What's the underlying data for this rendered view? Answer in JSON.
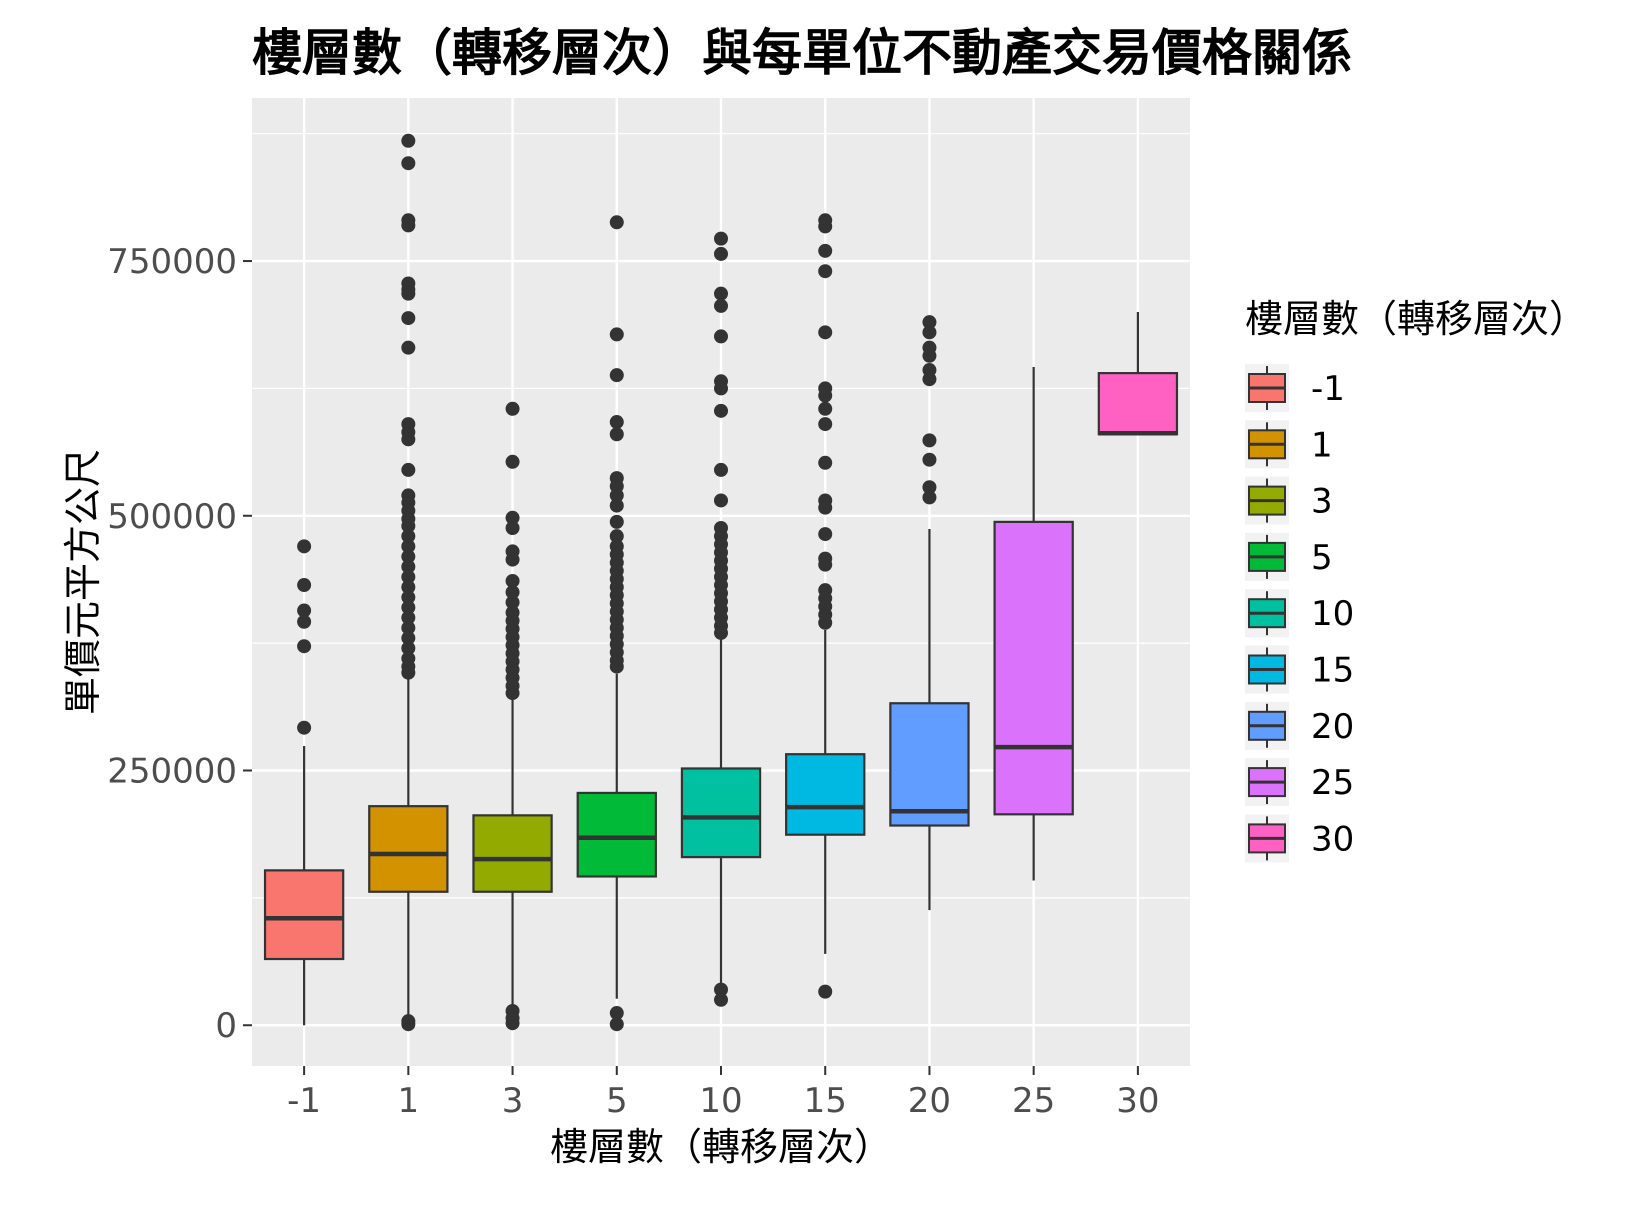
{
  "chart_data": {
    "type": "boxplot",
    "title": "樓層數（轉移層次）與每單位不動產交易價格關係",
    "xlabel": "樓層數（轉移層次）",
    "ylabel": "單價元平方公尺",
    "ylim": [
      -40000,
      910000
    ],
    "yticks": [
      0,
      250000,
      500000,
      750000
    ],
    "ytick_labels": [
      "0",
      "250000",
      "500000",
      "750000"
    ],
    "grid": true,
    "legend": {
      "title": "樓層數（轉移層次）",
      "position": "right"
    },
    "categories": [
      "-1",
      "1",
      "3",
      "5",
      "10",
      "15",
      "20",
      "25",
      "30"
    ],
    "colors": [
      "#F8766D",
      "#D39200",
      "#93AA00",
      "#00BA38",
      "#00C19F",
      "#00B9E3",
      "#619CFF",
      "#DB72FB",
      "#FF61C3"
    ],
    "boxes": [
      {
        "label": "-1",
        "whisker_low": 0,
        "q1": 65000,
        "median": 105000,
        "q3": 152000,
        "whisker_high": 274000,
        "outliers": [
          470000,
          432000,
          407000,
          396000,
          372000,
          292000
        ]
      },
      {
        "label": "1",
        "whisker_low": 0,
        "q1": 131000,
        "median": 168000,
        "q3": 215000,
        "whisker_high": 340000,
        "outliers": [
          868000,
          846000,
          790000,
          785000,
          728000,
          722000,
          718000,
          694000,
          665000,
          590000,
          582000,
          575000,
          545000,
          520000,
          513000,
          505000,
          497000,
          490000,
          480000,
          470000,
          460000,
          450000,
          440000,
          430000,
          420000,
          410000,
          400000,
          390000,
          380000,
          370000,
          360000,
          352000,
          346000,
          4000,
          1000
        ]
      },
      {
        "label": "3",
        "whisker_low": 0,
        "q1": 131000,
        "median": 163000,
        "q3": 206000,
        "whisker_high": 320000,
        "outliers": [
          605000,
          553000,
          498000,
          488000,
          465000,
          457000,
          436000,
          425000,
          415000,
          405000,
          397000,
          389000,
          381000,
          373000,
          365000,
          357000,
          349000,
          341000,
          333000,
          326000,
          14000,
          7000,
          2000
        ]
      },
      {
        "label": "5",
        "whisker_low": 26000,
        "q1": 146000,
        "median": 184000,
        "q3": 228000,
        "whisker_high": 345000,
        "outliers": [
          788000,
          678000,
          638000,
          592000,
          580000,
          537000,
          529000,
          520000,
          510000,
          494000,
          480000,
          470000,
          462000,
          454000,
          446000,
          438000,
          430000,
          422000,
          414000,
          406000,
          398000,
          390000,
          382000,
          374000,
          366000,
          358000,
          352000,
          12000,
          1000
        ]
      },
      {
        "label": "10",
        "whisker_low": 30000,
        "q1": 165000,
        "median": 204000,
        "q3": 252000,
        "whisker_high": 380000,
        "outliers": [
          772000,
          757000,
          718000,
          706000,
          676000,
          632000,
          625000,
          603000,
          545000,
          515000,
          488000,
          480000,
          472000,
          464000,
          456000,
          448000,
          440000,
          432000,
          424000,
          416000,
          408000,
          400000,
          392000,
          385000,
          35000,
          25000
        ]
      },
      {
        "label": "15",
        "whisker_low": 70000,
        "q1": 187000,
        "median": 214000,
        "q3": 266000,
        "whisker_high": 388000,
        "outliers": [
          790000,
          784000,
          760000,
          740000,
          680000,
          625000,
          618000,
          605000,
          590000,
          552000,
          515000,
          508000,
          482000,
          458000,
          452000,
          427000,
          419000,
          411000,
          403000,
          395000,
          33000
        ]
      },
      {
        "label": "20",
        "whisker_low": 113000,
        "q1": 196000,
        "median": 210000,
        "q3": 316000,
        "whisker_high": 487000,
        "outliers": [
          690000,
          680000,
          665000,
          657000,
          643000,
          634000,
          574000,
          555000,
          528000,
          518000
        ]
      },
      {
        "label": "25",
        "whisker_low": 142000,
        "q1": 207000,
        "median": 273000,
        "q3": 494000,
        "whisker_high": 646000,
        "outliers": []
      },
      {
        "label": "30",
        "whisker_low": 580000,
        "q1": 580000,
        "median": 581000,
        "q3": 640000,
        "whisker_high": 700000,
        "outliers": []
      }
    ]
  }
}
